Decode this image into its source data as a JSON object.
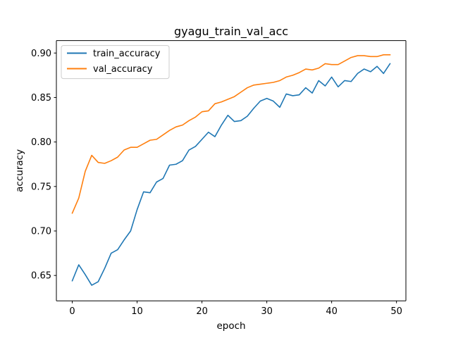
{
  "chart_data": {
    "type": "line",
    "title": "gyagu_train_val_acc",
    "xlabel": "epoch",
    "ylabel": "accuracy",
    "xlim": [
      -2.45,
      51.45
    ],
    "ylim": [
      0.6215,
      0.914
    ],
    "xticks": [
      0,
      10,
      20,
      30,
      40,
      50
    ],
    "yticks": [
      0.65,
      0.7,
      0.75,
      0.8,
      0.85,
      0.9
    ],
    "ytick_labels": [
      "0.65",
      "0.70",
      "0.75",
      "0.80",
      "0.85",
      "0.90"
    ],
    "grid": false,
    "legend_position": "upper left",
    "x": [
      0,
      1,
      2,
      3,
      4,
      5,
      6,
      7,
      8,
      9,
      10,
      11,
      12,
      13,
      14,
      15,
      16,
      17,
      18,
      19,
      20,
      21,
      22,
      23,
      24,
      25,
      26,
      27,
      28,
      29,
      30,
      31,
      32,
      33,
      34,
      35,
      36,
      37,
      38,
      39,
      40,
      41,
      42,
      43,
      44,
      45,
      46,
      47,
      48,
      49
    ],
    "series": [
      {
        "name": "train_accuracy",
        "color": "#1f77b4",
        "values": [
          0.644,
          0.662,
          0.651,
          0.639,
          0.643,
          0.658,
          0.675,
          0.679,
          0.69,
          0.7,
          0.724,
          0.744,
          0.743,
          0.755,
          0.759,
          0.774,
          0.775,
          0.779,
          0.791,
          0.795,
          0.803,
          0.811,
          0.806,
          0.819,
          0.83,
          0.823,
          0.824,
          0.829,
          0.838,
          0.846,
          0.849,
          0.846,
          0.839,
          0.854,
          0.852,
          0.853,
          0.861,
          0.855,
          0.869,
          0.863,
          0.873,
          0.862,
          0.869,
          0.868,
          0.877,
          0.882,
          0.879,
          0.885,
          0.877,
          0.888
        ]
      },
      {
        "name": "val_accuracy",
        "color": "#ff7f0e",
        "values": [
          0.72,
          0.737,
          0.767,
          0.785,
          0.777,
          0.776,
          0.779,
          0.783,
          0.791,
          0.794,
          0.794,
          0.798,
          0.802,
          0.803,
          0.808,
          0.813,
          0.817,
          0.819,
          0.824,
          0.828,
          0.834,
          0.835,
          0.843,
          0.845,
          0.848,
          0.851,
          0.856,
          0.861,
          0.864,
          0.865,
          0.866,
          0.867,
          0.869,
          0.873,
          0.875,
          0.878,
          0.882,
          0.881,
          0.883,
          0.888,
          0.887,
          0.887,
          0.891,
          0.895,
          0.897,
          0.897,
          0.896,
          0.896,
          0.898,
          0.898
        ]
      }
    ]
  }
}
